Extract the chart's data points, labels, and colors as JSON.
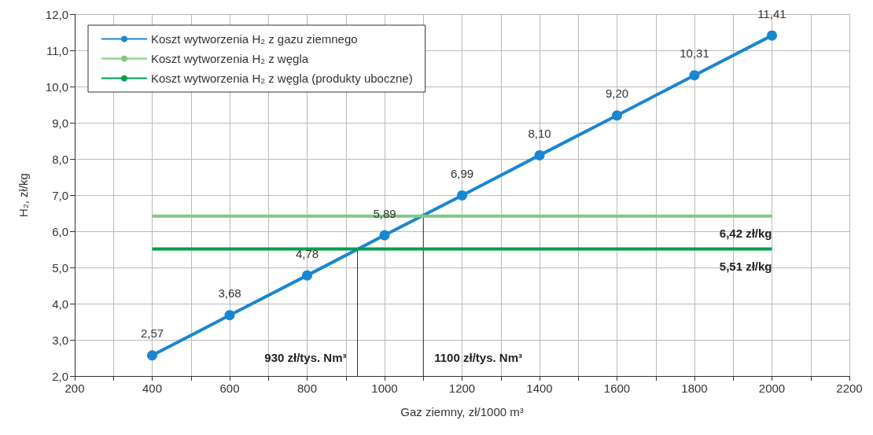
{
  "chart_data": {
    "type": "line",
    "xlabel": "Gaz ziemny, zł/1000 m³",
    "ylabel": "H₂, zł/kg",
    "xlim": [
      200,
      2200
    ],
    "ylim": [
      2,
      12
    ],
    "xticks": [
      200,
      {
        "value": 300,
        "label": null
      },
      400,
      {
        "value": 500,
        "label": null
      },
      600,
      {
        "value": 700,
        "label": null
      },
      800,
      {
        "value": 900,
        "label": null
      },
      1000,
      {
        "value": 1100,
        "label": null
      },
      1200,
      {
        "value": 1300,
        "label": null
      },
      1400,
      {
        "value": 1500,
        "label": null
      },
      1600,
      {
        "value": 1700,
        "label": null
      },
      1800,
      {
        "value": 1900,
        "label": null
      },
      2000,
      {
        "value": 2100,
        "label": null
      },
      2200
    ],
    "yticks": [
      {
        "value": 2,
        "label": "2,0"
      },
      {
        "value": 3,
        "label": "3,0"
      },
      {
        "value": 4,
        "label": "4,0"
      },
      {
        "value": 5,
        "label": "5,0"
      },
      {
        "value": 6,
        "label": "6,0"
      },
      {
        "value": 7,
        "label": "7,0"
      },
      {
        "value": 8,
        "label": "8,0"
      },
      {
        "value": 9,
        "label": "9,0"
      },
      {
        "value": 10,
        "label": "10,0"
      },
      {
        "value": 11,
        "label": "11,0"
      },
      {
        "value": 12,
        "label": "12,0"
      }
    ],
    "grid": true,
    "legend": "top left",
    "series": [
      {
        "name": "Koszt wytworzenia H₂ z gazu ziemnego",
        "color": "#1a86d0",
        "marker": "circle",
        "x": [
          400,
          600,
          800,
          1000,
          1200,
          1400,
          1600,
          1800,
          2000
        ],
        "values": [
          2.57,
          3.68,
          4.78,
          5.89,
          6.99,
          8.1,
          9.2,
          10.31,
          11.41
        ],
        "value_labels": [
          "2,57",
          "3,68",
          "4,78",
          "5,89",
          "6,99",
          "8,10",
          "9,20",
          "10,31",
          "11,41"
        ]
      },
      {
        "name": "Koszt wytworzenia H₂ z węgla",
        "color": "#80c980",
        "marker": "none",
        "x": [
          400,
          2000
        ],
        "values": [
          6.42,
          6.42
        ]
      },
      {
        "name": "Koszt wytworzenia H₂ z węgla (produkty uboczne)",
        "color": "#00a04a",
        "marker": "none",
        "x": [
          400,
          2000
        ],
        "values": [
          5.51,
          5.51
        ]
      },
      {
        "color": "#333333",
        "marker": "none",
        "x": [
          930,
          930
        ],
        "values": [
          2,
          5.51
        ]
      },
      {
        "color": "#333333",
        "marker": "none",
        "x": [
          1100,
          1100
        ],
        "values": [
          2,
          6.42
        ]
      }
    ],
    "annotations": [
      {
        "text": "6,42 zł/kg",
        "x": 2000,
        "y": 6.42
      },
      {
        "text": "5,51 zł/kg",
        "x": 2000,
        "y": 5.51
      },
      {
        "text": "930 zł/tys. Nm³",
        "x": 930,
        "y": 2
      },
      {
        "text": "1100 zł/tys. Nm³",
        "x": 1100,
        "y": 2
      }
    ]
  }
}
